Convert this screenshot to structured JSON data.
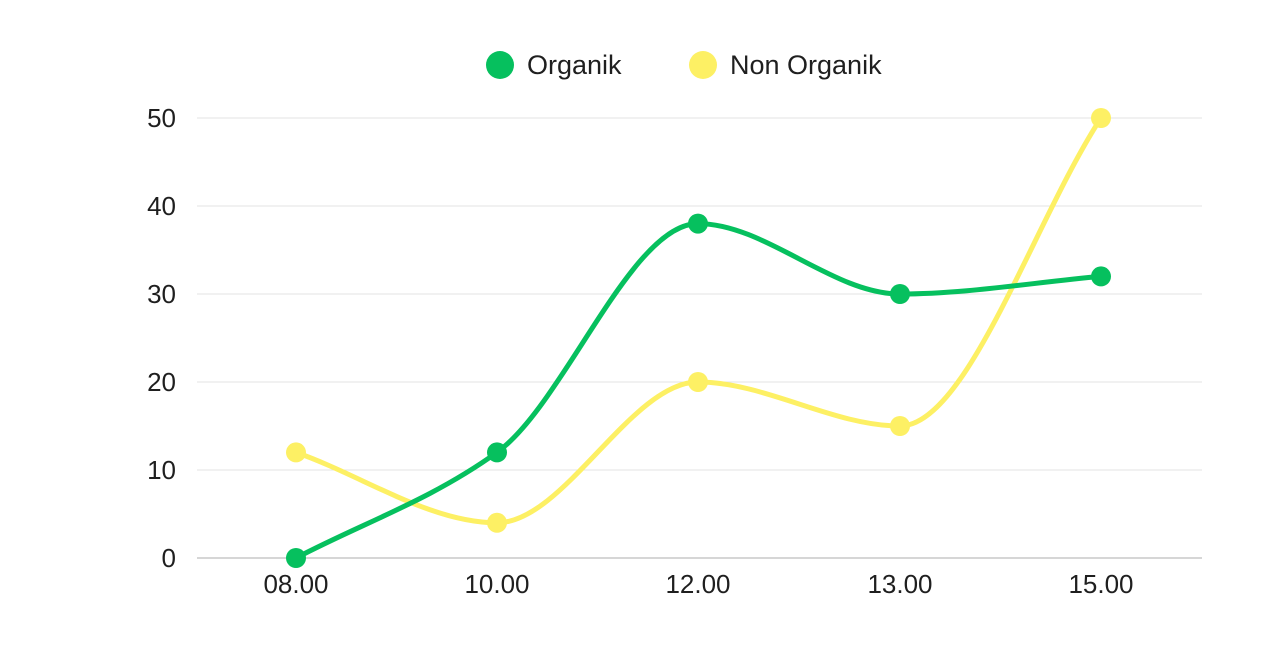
{
  "chart_data": {
    "type": "line",
    "title": "",
    "xlabel": "",
    "ylabel": "",
    "categories": [
      "08.00",
      "10.00",
      "12.00",
      "13.00",
      "15.00"
    ],
    "series": [
      {
        "name": "Organik",
        "color": "#06c05e",
        "values": [
          0,
          12,
          38,
          30,
          32
        ]
      },
      {
        "name": "Non Organik",
        "color": "#fdf064",
        "values": [
          12,
          4,
          20,
          15,
          50
        ]
      }
    ],
    "yticks": [
      0,
      10,
      20,
      30,
      40,
      50
    ],
    "ylim": [
      0,
      50
    ],
    "grid": true,
    "smooth": true,
    "legend_position": "top-center"
  }
}
